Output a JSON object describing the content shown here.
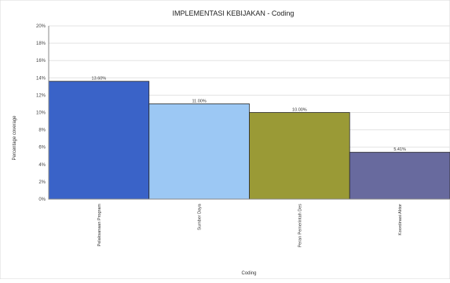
{
  "chart_data": {
    "type": "bar",
    "title": "IMPLEMENTASI KEBIJAKAN - Coding",
    "xlabel": "Coding",
    "ylabel": "Percentage coverage",
    "ylim": [
      0,
      20
    ],
    "yticks": [
      "0%",
      "2%",
      "4%",
      "6%",
      "8%",
      "10%",
      "12%",
      "14%",
      "16%",
      "18%",
      "20%"
    ],
    "grid": true,
    "categories": [
      "Pelaksanaan Program",
      "Sumber Daya",
      "Peran Pemerintah Des",
      "Koordinasi Aktor"
    ],
    "values": [
      13.6,
      11.0,
      10.0,
      5.41
    ],
    "labels": [
      "13.60%",
      "11.00%",
      "10.00%",
      "5.41%"
    ],
    "colors": [
      "#3a63c8",
      "#9cc8f4",
      "#9a9a36",
      "#686a9e"
    ]
  }
}
